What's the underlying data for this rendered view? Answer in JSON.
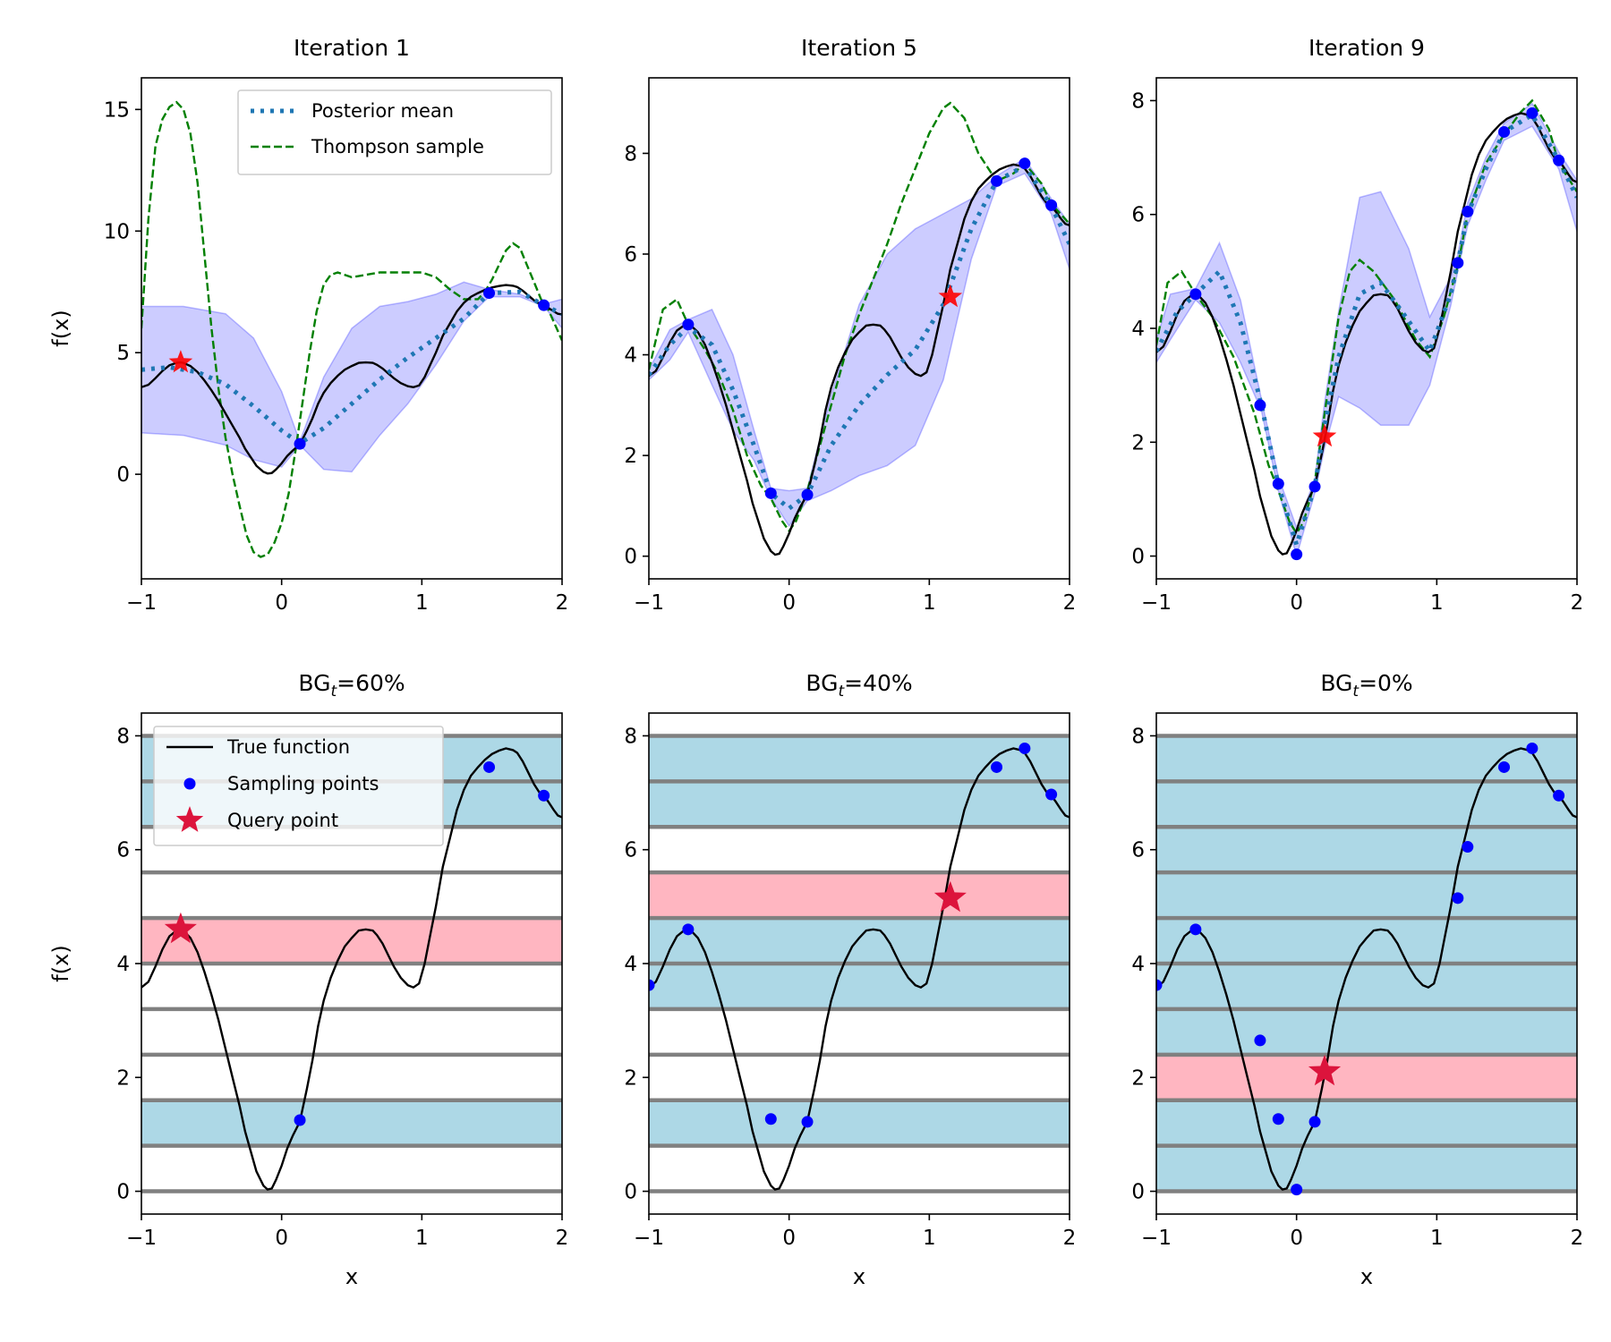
{
  "chart_data": [
    {
      "type": "line",
      "title": "Iteration 1",
      "xlabel": "",
      "ylabel": "f(x)",
      "xlim": [
        -1,
        2
      ],
      "ylim": [
        -4.3,
        16.3
      ],
      "xticks": [
        -1,
        0,
        1,
        2
      ],
      "xtick_labels": [
        "−1",
        "0",
        "1",
        "2"
      ],
      "yticks": [
        0,
        5,
        10,
        15
      ],
      "ytick_labels": [
        "0",
        "5",
        "10",
        "15"
      ],
      "true_function": {
        "name": "True function",
        "color": "#000000"
      },
      "posterior_mean": {
        "name": "Posterior mean",
        "color": "#1f77b4",
        "x": [
          -1,
          -0.8,
          -0.6,
          -0.4,
          -0.2,
          0,
          0.13,
          0.3,
          0.5,
          0.7,
          0.9,
          1.1,
          1.3,
          1.48,
          1.7,
          1.87,
          2
        ],
        "y": [
          4.3,
          4.4,
          4.2,
          3.7,
          2.8,
          1.8,
          1.27,
          1.9,
          2.9,
          3.9,
          4.8,
          5.6,
          6.4,
          7.45,
          7.5,
          6.95,
          6.6
        ]
      },
      "credible_band": {
        "color": "#0000ff",
        "x": [
          -1,
          -0.7,
          -0.4,
          -0.2,
          0,
          0.13,
          0.3,
          0.5,
          0.7,
          0.9,
          1.1,
          1.3,
          1.48,
          1.7,
          1.87,
          2
        ],
        "upper": [
          6.9,
          6.9,
          6.6,
          5.6,
          3.4,
          1.35,
          4.0,
          6.0,
          6.9,
          7.1,
          7.4,
          7.9,
          7.6,
          7.4,
          7.0,
          7.2
        ],
        "lower": [
          1.7,
          1.6,
          1.2,
          0.6,
          0.3,
          1.2,
          0.2,
          0.1,
          1.6,
          2.9,
          4.5,
          6.3,
          7.3,
          7.3,
          6.9,
          6.0
        ]
      },
      "thompson_sample": {
        "name": "Thompson sample",
        "color": "#008000",
        "x": [
          -1,
          -0.95,
          -0.9,
          -0.85,
          -0.8,
          -0.75,
          -0.7,
          -0.65,
          -0.6,
          -0.55,
          -0.5,
          -0.45,
          -0.4,
          -0.35,
          -0.3,
          -0.25,
          -0.2,
          -0.15,
          -0.1,
          -0.05,
          0,
          0.05,
          0.1,
          0.15,
          0.2,
          0.25,
          0.3,
          0.35,
          0.4,
          0.45,
          0.5,
          0.6,
          0.7,
          0.8,
          0.9,
          1.0,
          1.1,
          1.2,
          1.3,
          1.4,
          1.45,
          1.5,
          1.55,
          1.6,
          1.65,
          1.7,
          1.75,
          1.8,
          1.85,
          1.9,
          2
        ],
        "y": [
          6.0,
          10.5,
          13.5,
          14.6,
          15.1,
          15.3,
          15.0,
          14.0,
          12.0,
          9.0,
          6.0,
          3.5,
          1.5,
          0.0,
          -1.3,
          -2.5,
          -3.2,
          -3.4,
          -3.3,
          -2.8,
          -2.0,
          -0.8,
          1.0,
          3.0,
          5.0,
          6.7,
          7.8,
          8.2,
          8.3,
          8.2,
          8.1,
          8.2,
          8.3,
          8.3,
          8.3,
          8.3,
          8.1,
          7.6,
          7.2,
          7.2,
          7.5,
          8.0,
          8.6,
          9.2,
          9.5,
          9.3,
          8.6,
          7.9,
          7.2,
          6.8,
          5.5
        ]
      },
      "sampling_points": {
        "name": "Sampling points",
        "color": "#0000ff",
        "x": [
          0.13,
          1.48,
          1.87
        ],
        "y": [
          1.25,
          7.45,
          6.95
        ]
      },
      "query_point": {
        "name": "Query point",
        "color": "#ff0000",
        "x": -0.72,
        "y": 4.6
      },
      "legend": {
        "location": "top-right",
        "entries": [
          "Posterior mean",
          "Thompson sample"
        ]
      }
    },
    {
      "type": "line",
      "title": "Iteration 5",
      "xlabel": "",
      "ylabel": "",
      "xlim": [
        -1,
        2
      ],
      "ylim": [
        -0.45,
        9.5
      ],
      "xticks": [
        -1,
        0,
        1,
        2
      ],
      "xtick_labels": [
        "−1",
        "0",
        "1",
        "2"
      ],
      "yticks": [
        0,
        2,
        4,
        6,
        8
      ],
      "ytick_labels": [
        "0",
        "2",
        "4",
        "6",
        "8"
      ],
      "true_function": {
        "name": "True function",
        "color": "#000000"
      },
      "posterior_mean": {
        "name": "Posterior mean",
        "color": "#1f77b4",
        "x": [
          -1,
          -0.85,
          -0.72,
          -0.55,
          -0.4,
          -0.25,
          -0.13,
          0,
          0.13,
          0.3,
          0.5,
          0.7,
          0.9,
          1.1,
          1.3,
          1.48,
          1.68,
          1.87,
          2
        ],
        "y": [
          3.6,
          4.2,
          4.55,
          4.2,
          3.3,
          2.2,
          1.25,
          0.95,
          1.22,
          2.2,
          3.0,
          3.6,
          4.1,
          5.0,
          6.5,
          7.45,
          7.75,
          6.95,
          6.2
        ]
      },
      "credible_band": {
        "color": "#0000ff",
        "x": [
          -1,
          -0.85,
          -0.72,
          -0.55,
          -0.4,
          -0.25,
          -0.13,
          0,
          0.13,
          0.3,
          0.5,
          0.7,
          0.9,
          1.1,
          1.3,
          1.48,
          1.68,
          1.87,
          2
        ],
        "upper": [
          3.7,
          4.5,
          4.7,
          4.9,
          4.0,
          2.5,
          1.35,
          1.3,
          1.35,
          3.2,
          5.0,
          6.0,
          6.5,
          6.8,
          7.1,
          7.55,
          7.9,
          7.1,
          6.6
        ],
        "lower": [
          3.5,
          3.9,
          4.45,
          3.4,
          2.5,
          1.9,
          1.15,
          0.6,
          1.1,
          1.3,
          1.6,
          1.8,
          2.2,
          3.5,
          5.9,
          7.35,
          7.6,
          6.8,
          5.7
        ]
      },
      "thompson_sample": {
        "name": "Thompson sample",
        "color": "#008000",
        "x": [
          -1,
          -0.9,
          -0.8,
          -0.72,
          -0.6,
          -0.5,
          -0.4,
          -0.3,
          -0.2,
          -0.13,
          -0.05,
          0,
          0.05,
          0.13,
          0.2,
          0.3,
          0.4,
          0.5,
          0.6,
          0.7,
          0.8,
          0.9,
          1.0,
          1.1,
          1.15,
          1.25,
          1.35,
          1.48,
          1.6,
          1.68,
          1.8,
          1.87,
          2
        ],
        "y": [
          3.7,
          4.9,
          5.1,
          4.6,
          4.1,
          3.6,
          2.9,
          2.0,
          1.4,
          1.15,
          0.7,
          0.5,
          0.7,
          1.3,
          2.0,
          3.0,
          4.0,
          4.8,
          5.5,
          6.2,
          7.0,
          7.7,
          8.4,
          8.9,
          9.0,
          8.7,
          8.0,
          7.45,
          7.6,
          7.8,
          7.4,
          7.0,
          6.6
        ]
      },
      "sampling_points": {
        "name": "Sampling points",
        "color": "#0000ff",
        "x": [
          -0.72,
          -0.13,
          0.13,
          1.48,
          1.68,
          1.87
        ],
        "y": [
          4.6,
          1.25,
          1.22,
          7.45,
          7.8,
          6.97
        ]
      },
      "query_point": {
        "name": "Query point",
        "color": "#ff0000",
        "x": 1.15,
        "y": 5.15
      }
    },
    {
      "type": "line",
      "title": "Iteration 9",
      "xlabel": "",
      "ylabel": "",
      "xlim": [
        -1,
        2
      ],
      "ylim": [
        -0.4,
        8.4
      ],
      "xticks": [
        -1,
        0,
        1,
        2
      ],
      "xtick_labels": [
        "−1",
        "0",
        "1",
        "2"
      ],
      "yticks": [
        0,
        2,
        4,
        6,
        8
      ],
      "ytick_labels": [
        "0",
        "2",
        "4",
        "6",
        "8"
      ],
      "true_function": {
        "name": "True function",
        "color": "#000000"
      },
      "posterior_mean": {
        "name": "Posterior mean",
        "color": "#1f77b4",
        "x": [
          -1,
          -0.85,
          -0.72,
          -0.55,
          -0.4,
          -0.25,
          -0.13,
          0,
          0.13,
          0.2,
          0.3,
          0.45,
          0.6,
          0.75,
          0.95,
          1.1,
          1.15,
          1.22,
          1.35,
          1.48,
          1.68,
          1.87,
          2
        ],
        "y": [
          3.6,
          4.3,
          4.6,
          5.0,
          4.1,
          2.65,
          1.25,
          0.2,
          1.22,
          2.3,
          3.5,
          4.6,
          4.8,
          4.3,
          3.6,
          4.6,
          5.15,
          6.0,
          6.8,
          7.45,
          7.75,
          6.95,
          6.3
        ]
      },
      "credible_band": {
        "color": "#0000ff",
        "x": [
          -1,
          -0.9,
          -0.72,
          -0.55,
          -0.4,
          -0.25,
          -0.13,
          0,
          0.13,
          0.2,
          0.3,
          0.45,
          0.6,
          0.8,
          0.95,
          1.1,
          1.15,
          1.22,
          1.35,
          1.48,
          1.68,
          1.87,
          2
        ],
        "upper": [
          3.8,
          4.6,
          4.7,
          5.5,
          4.5,
          2.75,
          1.4,
          0.5,
          1.35,
          2.7,
          4.3,
          6.3,
          6.4,
          5.4,
          4.2,
          4.9,
          5.3,
          6.2,
          7.0,
          7.6,
          7.95,
          7.1,
          6.6
        ],
        "lower": [
          3.4,
          3.8,
          4.5,
          4.1,
          3.4,
          2.55,
          1.15,
          0.0,
          1.1,
          1.9,
          2.8,
          2.6,
          2.3,
          2.3,
          3.0,
          4.4,
          5.0,
          5.8,
          6.6,
          7.3,
          7.55,
          6.8,
          5.7
        ]
      },
      "thompson_sample": {
        "name": "Thompson sample",
        "color": "#008000",
        "x": [
          -1,
          -0.92,
          -0.82,
          -0.72,
          -0.6,
          -0.45,
          -0.3,
          -0.2,
          -0.13,
          -0.05,
          0,
          0.05,
          0.13,
          0.2,
          0.3,
          0.38,
          0.45,
          0.55,
          0.7,
          0.85,
          0.95,
          1.05,
          1.15,
          1.22,
          1.35,
          1.48,
          1.6,
          1.68,
          1.8,
          1.87,
          2
        ],
        "y": [
          3.7,
          4.8,
          5.0,
          4.6,
          4.2,
          3.5,
          2.5,
          1.6,
          1.15,
          0.6,
          0.4,
          0.6,
          1.3,
          2.5,
          4.2,
          5.0,
          5.2,
          5.0,
          4.5,
          3.8,
          3.5,
          4.2,
          5.1,
          6.0,
          6.9,
          7.4,
          7.8,
          8.0,
          7.5,
          6.9,
          6.4
        ]
      },
      "sampling_points": {
        "name": "Sampling points",
        "color": "#0000ff",
        "x": [
          -0.72,
          -0.26,
          -0.13,
          0,
          0.13,
          1.15,
          1.22,
          1.48,
          1.68,
          1.87
        ],
        "y": [
          4.6,
          2.65,
          1.27,
          0.03,
          1.22,
          5.15,
          6.05,
          7.45,
          7.78,
          6.95
        ]
      },
      "query_point": {
        "name": "Query point",
        "color": "#ff0000",
        "x": 0.2,
        "y": 2.1
      }
    },
    {
      "type": "line",
      "title": "BG",
      "title_subscript": "t",
      "title_suffix": "=60%",
      "xlabel": "x",
      "ylabel": "f(x)",
      "xlim": [
        -1,
        2
      ],
      "ylim": [
        -0.4,
        8.4
      ],
      "xticks": [
        -1,
        0,
        1,
        2
      ],
      "xtick_labels": [
        "−1",
        "0",
        "1",
        "2"
      ],
      "yticks": [
        0,
        2,
        4,
        6,
        8
      ],
      "ytick_labels": [
        "0",
        "2",
        "4",
        "6",
        "8"
      ],
      "bin_edges": [
        0,
        0.8,
        1.6,
        2.4,
        3.2,
        4.0,
        4.8,
        5.6,
        6.4,
        7.2,
        8.0
      ],
      "explored_bins": [
        [
          0.8,
          1.6
        ],
        [
          6.4,
          7.2
        ],
        [
          7.2,
          8.0
        ]
      ],
      "query_bin": [
        4.0,
        4.8
      ],
      "true_function": {
        "name": "True function",
        "color": "#000000"
      },
      "sampling_points": {
        "name": "Sampling points",
        "color": "#0000ff",
        "x": [
          0.13,
          1.48,
          1.87
        ],
        "y": [
          1.25,
          7.45,
          6.95
        ]
      },
      "query_point": {
        "name": "Query point",
        "color": "#dc143c",
        "x": -0.72,
        "y": 4.6
      },
      "legend": {
        "location": "top-left",
        "entries": [
          "True function",
          "Sampling points",
          "Query point"
        ]
      }
    },
    {
      "type": "line",
      "title": "BG",
      "title_subscript": "t",
      "title_suffix": "=40%",
      "xlabel": "x",
      "ylabel": "",
      "xlim": [
        -1,
        2
      ],
      "ylim": [
        -0.4,
        8.4
      ],
      "xticks": [
        -1,
        0,
        1,
        2
      ],
      "xtick_labels": [
        "−1",
        "0",
        "1",
        "2"
      ],
      "yticks": [
        0,
        2,
        4,
        6,
        8
      ],
      "ytick_labels": [
        "0",
        "2",
        "4",
        "6",
        "8"
      ],
      "bin_edges": [
        0,
        0.8,
        1.6,
        2.4,
        3.2,
        4.0,
        4.8,
        5.6,
        6.4,
        7.2,
        8.0
      ],
      "explored_bins": [
        [
          0.8,
          1.6
        ],
        [
          3.2,
          4.0
        ],
        [
          4.0,
          4.8
        ],
        [
          6.4,
          7.2
        ],
        [
          7.2,
          8.0
        ]
      ],
      "query_bin": [
        4.8,
        5.6
      ],
      "true_function": {
        "name": "True function",
        "color": "#000000"
      },
      "sampling_points": {
        "name": "Sampling points",
        "color": "#0000ff",
        "x": [
          -1,
          -0.72,
          -0.13,
          0.13,
          1.48,
          1.68,
          1.87
        ],
        "y": [
          3.62,
          4.6,
          1.27,
          1.22,
          7.45,
          7.78,
          6.97
        ]
      },
      "query_point": {
        "name": "Query point",
        "color": "#dc143c",
        "x": 1.15,
        "y": 5.15
      }
    },
    {
      "type": "line",
      "title": "BG",
      "title_subscript": "t",
      "title_suffix": "=0%",
      "xlabel": "x",
      "ylabel": "",
      "xlim": [
        -1,
        2
      ],
      "ylim": [
        -0.4,
        8.4
      ],
      "xticks": [
        -1,
        0,
        1,
        2
      ],
      "xtick_labels": [
        "−1",
        "0",
        "1",
        "2"
      ],
      "yticks": [
        0,
        2,
        4,
        6,
        8
      ],
      "ytick_labels": [
        "0",
        "2",
        "4",
        "6",
        "8"
      ],
      "bin_edges": [
        0,
        0.8,
        1.6,
        2.4,
        3.2,
        4.0,
        4.8,
        5.6,
        6.4,
        7.2,
        8.0
      ],
      "explored_bins": [
        [
          0,
          0.8
        ],
        [
          0.8,
          1.6
        ],
        [
          2.4,
          3.2
        ],
        [
          3.2,
          4.0
        ],
        [
          4.0,
          4.8
        ],
        [
          4.8,
          5.6
        ],
        [
          5.6,
          6.4
        ],
        [
          6.4,
          7.2
        ],
        [
          7.2,
          8.0
        ]
      ],
      "query_bin": [
        1.6,
        2.4
      ],
      "true_function": {
        "name": "True function",
        "color": "#000000"
      },
      "sampling_points": {
        "name": "Sampling points",
        "color": "#0000ff",
        "x": [
          -1,
          -0.72,
          -0.26,
          -0.13,
          0,
          0.13,
          1.15,
          1.22,
          1.48,
          1.68,
          1.87
        ],
        "y": [
          3.62,
          4.6,
          2.65,
          1.27,
          0.03,
          1.22,
          5.15,
          6.05,
          7.45,
          7.78,
          6.95
        ]
      },
      "query_point": {
        "name": "Query point",
        "color": "#dc143c",
        "x": 0.2,
        "y": 2.1
      }
    }
  ],
  "colors": {
    "band_fill": "#0000ff",
    "explored_fill": "#add8e6",
    "query_fill": "#ffb6c1",
    "bin_edge": "#808080",
    "axes_edge": "#000000"
  }
}
